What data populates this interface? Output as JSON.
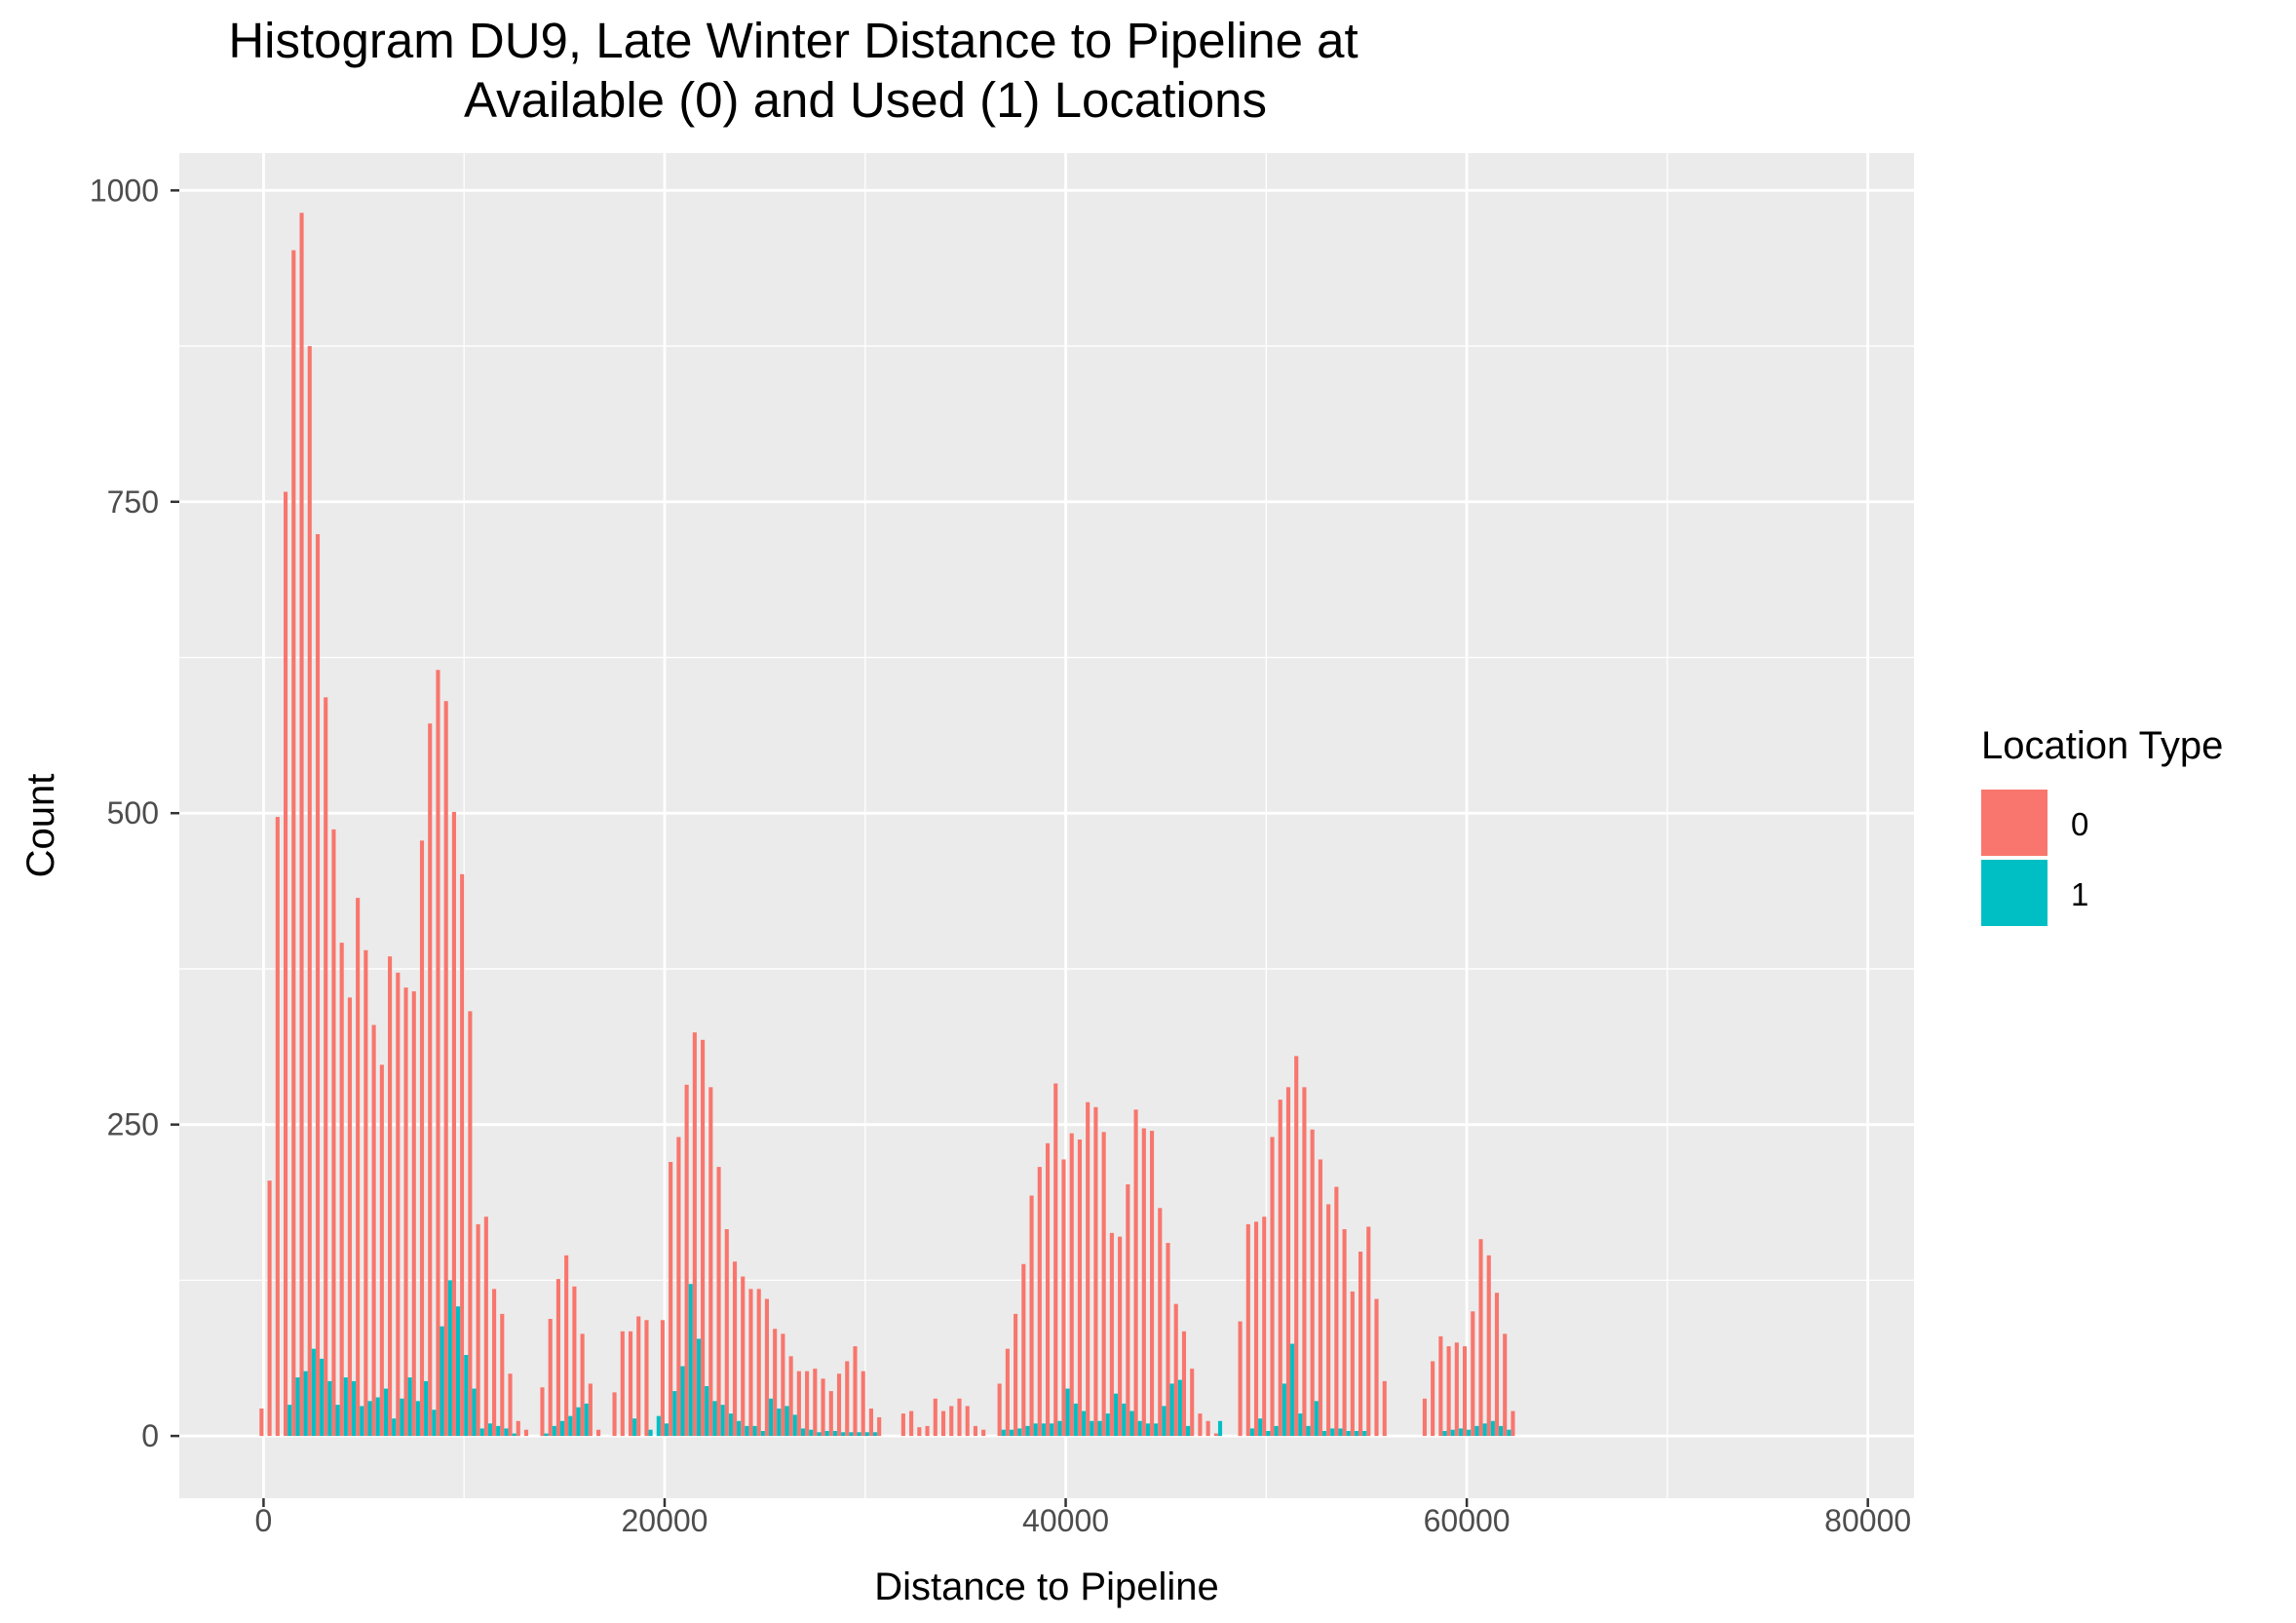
{
  "chart_data": {
    "type": "bar",
    "title_lines": [
      "Histogram DU9, Late Winter Distance to Pipeline at",
      "Available (0) and Used (1) Locations"
    ],
    "xlabel": "Distance to Pipeline",
    "ylabel": "Count",
    "xlim": [
      -4200,
      82300
    ],
    "ylim": [
      -50,
      1030
    ],
    "x_ticks": [
      0,
      20000,
      40000,
      60000,
      80000
    ],
    "x_tick_labels": [
      "0",
      "20000",
      "40000",
      "60000",
      "80000"
    ],
    "y_ticks": [
      0,
      250,
      500,
      750,
      1000
    ],
    "y_tick_labels": [
      "0",
      "250",
      "500",
      "750",
      "1000"
    ],
    "grid": true,
    "legend": {
      "title": "Location Type",
      "position": "right"
    },
    "bin_width": 400,
    "bin_start": 0,
    "series": [
      {
        "name": "0",
        "color": "#F8766D",
        "values": [
          22,
          205,
          497,
          758,
          952,
          982,
          875,
          724,
          593,
          487,
          396,
          352,
          432,
          390,
          330,
          298,
          385,
          372,
          360,
          357,
          478,
          572,
          615,
          590,
          501,
          451,
          341,
          170,
          176,
          118,
          98,
          50,
          12,
          5,
          0,
          39,
          94,
          126,
          145,
          120,
          82,
          42,
          5,
          0,
          35,
          84,
          84,
          96,
          93,
          0,
          93,
          220,
          240,
          282,
          324,
          318,
          280,
          216,
          166,
          140,
          128,
          118,
          118,
          110,
          86,
          82,
          64,
          52,
          52,
          54,
          46,
          36,
          50,
          60,
          72,
          52,
          22,
          15,
          0,
          0,
          18,
          20,
          7,
          8,
          30,
          20,
          24,
          30,
          24,
          8,
          5,
          0,
          42,
          70,
          98,
          138,
          193,
          216,
          235,
          283,
          222,
          243,
          238,
          268,
          264,
          244,
          163,
          160,
          202,
          262,
          247,
          245,
          183,
          155,
          106,
          84,
          54,
          18,
          12,
          2,
          0,
          0,
          92,
          170,
          172,
          176,
          240,
          270,
          280,
          305,
          280,
          246,
          222,
          186,
          200,
          166,
          116,
          148,
          168,
          110,
          44,
          0,
          0,
          0,
          0,
          30,
          60,
          80,
          72,
          75,
          72,
          100,
          158,
          145,
          115,
          82,
          20
        ]
      },
      {
        "name": "1",
        "color": "#00BFC4",
        "values": [
          0,
          0,
          0,
          25,
          47,
          52,
          70,
          62,
          44,
          25,
          47,
          44,
          24,
          28,
          31,
          38,
          14,
          30,
          47,
          28,
          44,
          21,
          88,
          125,
          104,
          65,
          38,
          6,
          10,
          8,
          6,
          2,
          0,
          0,
          0,
          2,
          8,
          12,
          16,
          23,
          26,
          0,
          0,
          0,
          0,
          0,
          14,
          0,
          5,
          16,
          10,
          36,
          56,
          122,
          78,
          40,
          28,
          25,
          18,
          12,
          8,
          8,
          4,
          30,
          22,
          24,
          17,
          6,
          5,
          3,
          4,
          4,
          3,
          3,
          3,
          3,
          3,
          0,
          0,
          0,
          0,
          0,
          0,
          0,
          0,
          0,
          0,
          0,
          0,
          0,
          0,
          0,
          5,
          5,
          6,
          8,
          10,
          10,
          10,
          12,
          38,
          26,
          20,
          12,
          12,
          18,
          34,
          26,
          20,
          12,
          10,
          10,
          24,
          42,
          45,
          8,
          0,
          0,
          0,
          12,
          0,
          0,
          0,
          6,
          14,
          4,
          8,
          42,
          74,
          18,
          8,
          28,
          4,
          6,
          6,
          4,
          4,
          4,
          0,
          0,
          0,
          0,
          0,
          0,
          0,
          0,
          0,
          4,
          5,
          6,
          5,
          8,
          10,
          12,
          8,
          5,
          0,
          0
        ]
      }
    ]
  }
}
